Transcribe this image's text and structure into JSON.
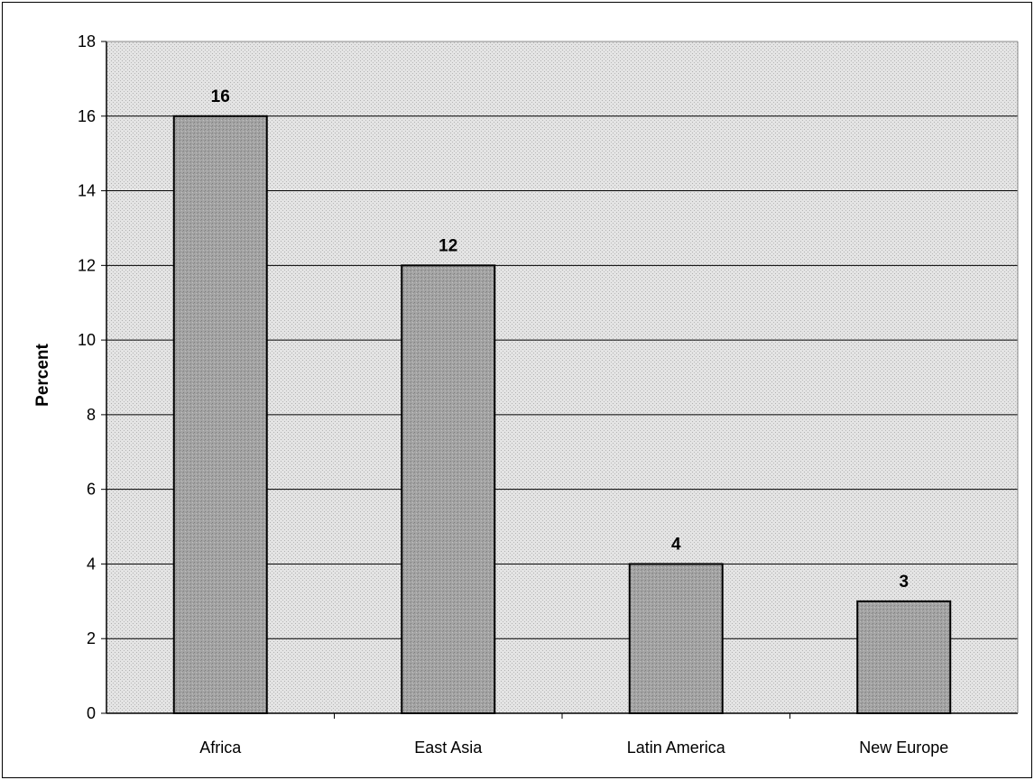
{
  "chart_data": {
    "type": "bar",
    "title": "",
    "xlabel": "",
    "ylabel": "Percent",
    "categories": [
      "Africa",
      "East Asia",
      "Latin America",
      "New Europe"
    ],
    "values": [
      16,
      12,
      4,
      3
    ],
    "data_labels": [
      "16",
      "12",
      "4",
      "3"
    ],
    "ylim": [
      0,
      18
    ],
    "yticks": [
      0,
      2,
      4,
      6,
      8,
      10,
      12,
      14,
      16,
      18
    ],
    "grid": true,
    "legend": "none",
    "colors": {
      "bar_fill": "#a6a6a6",
      "bar_stroke": "#000000",
      "plot_background": "#d9d9d9",
      "gridline": "#000000"
    }
  }
}
